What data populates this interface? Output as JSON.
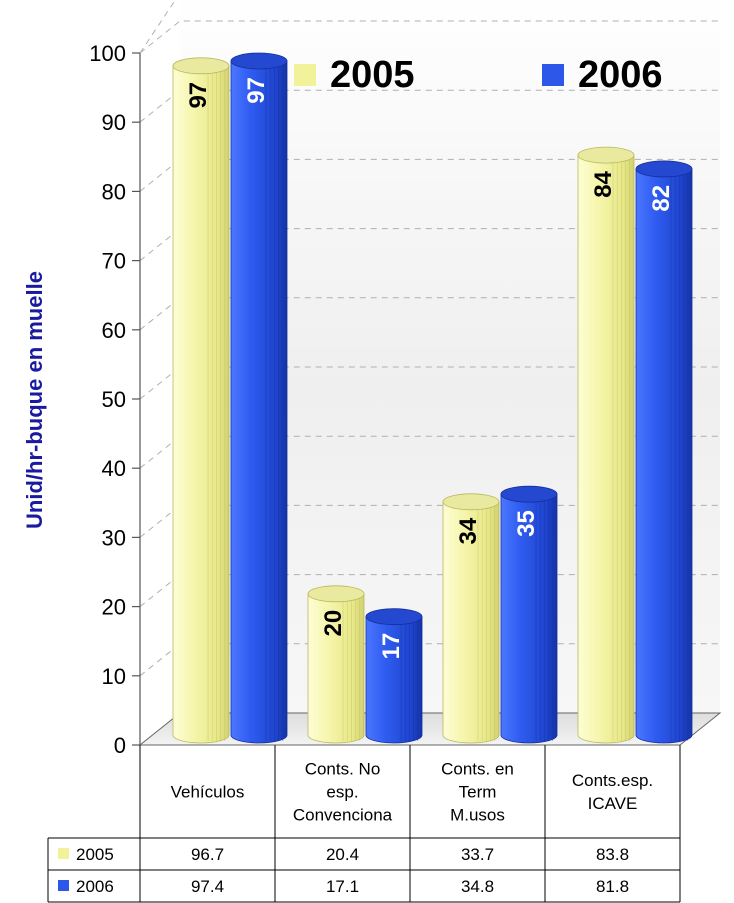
{
  "chart_data": {
    "type": "bar",
    "title": "",
    "ylabel": "Unid/hr-buque en muelle",
    "xlabel": "",
    "ylim": [
      0,
      100
    ],
    "yticks": [
      0,
      10,
      20,
      30,
      40,
      50,
      60,
      70,
      80,
      90,
      100
    ],
    "grid": true,
    "legend_position": "top",
    "categories": [
      [
        "Vehículos"
      ],
      [
        "Conts. No",
        "esp.",
        "Convenciona"
      ],
      [
        "Conts. en",
        "Term",
        "M.usos"
      ],
      [
        "Conts.esp.",
        "ICAVE"
      ]
    ],
    "series": [
      {
        "name": "2005",
        "color": "#f2f29a",
        "values": [
          96.7,
          20.4,
          33.7,
          83.8
        ],
        "bar_labels": [
          "97",
          "20",
          "34",
          "84"
        ],
        "table_values": [
          "96.7",
          "20.4",
          "33.7",
          "83.8"
        ]
      },
      {
        "name": "2006",
        "color": "#2d57e8",
        "values": [
          97.4,
          17.1,
          34.8,
          81.8
        ],
        "bar_labels": [
          "97",
          "17",
          "35",
          "82"
        ],
        "table_values": [
          "97.4",
          "17.1",
          "34.8",
          "81.8"
        ]
      }
    ]
  }
}
